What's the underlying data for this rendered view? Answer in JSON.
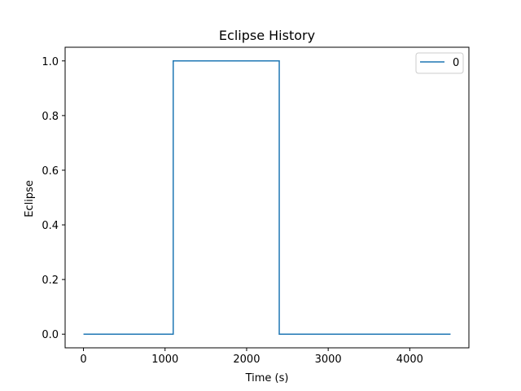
{
  "chart_data": {
    "type": "line",
    "title": "Eclipse History",
    "xlabel": "Time (s)",
    "ylabel": "Eclipse",
    "xlim": [
      -225,
      4725
    ],
    "ylim": [
      -0.05,
      1.05
    ],
    "xticks": [
      0,
      1000,
      2000,
      3000,
      4000
    ],
    "yticks": [
      0.0,
      0.2,
      0.4,
      0.6,
      0.8,
      1.0
    ],
    "xtick_labels": [
      "0",
      "1000",
      "2000",
      "3000",
      "4000"
    ],
    "ytick_labels": [
      "0.0",
      "0.2",
      "0.4",
      "0.6",
      "0.8",
      "1.0"
    ],
    "grid": false,
    "legend": {
      "position": "top-right"
    },
    "series": [
      {
        "name": "0",
        "color": "#1f77b4",
        "x": [
          0,
          1100,
          1100,
          2400,
          2400,
          4500
        ],
        "y": [
          0,
          0,
          1,
          1,
          0,
          0
        ]
      }
    ]
  }
}
